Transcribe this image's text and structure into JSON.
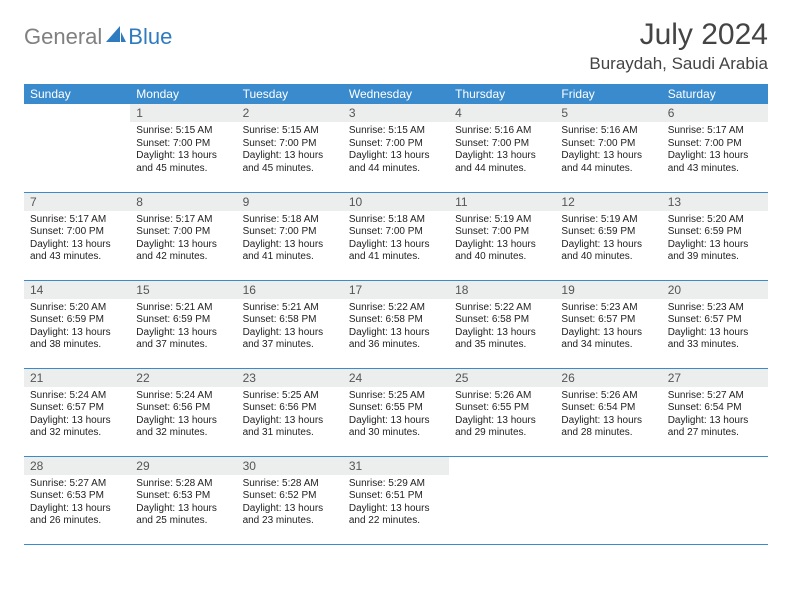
{
  "logo": {
    "gray": "General",
    "blue": "Blue"
  },
  "title": "July 2024",
  "location": "Buraydah, Saudi Arabia",
  "weekdays": [
    "Sunday",
    "Monday",
    "Tuesday",
    "Wednesday",
    "Thursday",
    "Friday",
    "Saturday"
  ],
  "colors": {
    "header_bg": "#3a8bce",
    "header_text": "#ffffff",
    "daynum_bg": "#eceded",
    "logo_gray": "#808080",
    "logo_blue": "#2f7bbf",
    "cell_border": "#3a8bce"
  },
  "typography": {
    "title_fontsize": 30,
    "location_fontsize": 17,
    "weekday_fontsize": 12,
    "daynum_fontsize": 12,
    "body_fontsize": 10
  },
  "layout": {
    "cols": 7,
    "rows": 5,
    "first_day_col": 1
  },
  "days": [
    {
      "n": 1,
      "sunrise": "5:15 AM",
      "sunset": "7:00 PM",
      "daylight": "13 hours and 45 minutes."
    },
    {
      "n": 2,
      "sunrise": "5:15 AM",
      "sunset": "7:00 PM",
      "daylight": "13 hours and 45 minutes."
    },
    {
      "n": 3,
      "sunrise": "5:15 AM",
      "sunset": "7:00 PM",
      "daylight": "13 hours and 44 minutes."
    },
    {
      "n": 4,
      "sunrise": "5:16 AM",
      "sunset": "7:00 PM",
      "daylight": "13 hours and 44 minutes."
    },
    {
      "n": 5,
      "sunrise": "5:16 AM",
      "sunset": "7:00 PM",
      "daylight": "13 hours and 44 minutes."
    },
    {
      "n": 6,
      "sunrise": "5:17 AM",
      "sunset": "7:00 PM",
      "daylight": "13 hours and 43 minutes."
    },
    {
      "n": 7,
      "sunrise": "5:17 AM",
      "sunset": "7:00 PM",
      "daylight": "13 hours and 43 minutes."
    },
    {
      "n": 8,
      "sunrise": "5:17 AM",
      "sunset": "7:00 PM",
      "daylight": "13 hours and 42 minutes."
    },
    {
      "n": 9,
      "sunrise": "5:18 AM",
      "sunset": "7:00 PM",
      "daylight": "13 hours and 41 minutes."
    },
    {
      "n": 10,
      "sunrise": "5:18 AM",
      "sunset": "7:00 PM",
      "daylight": "13 hours and 41 minutes."
    },
    {
      "n": 11,
      "sunrise": "5:19 AM",
      "sunset": "7:00 PM",
      "daylight": "13 hours and 40 minutes."
    },
    {
      "n": 12,
      "sunrise": "5:19 AM",
      "sunset": "6:59 PM",
      "daylight": "13 hours and 40 minutes."
    },
    {
      "n": 13,
      "sunrise": "5:20 AM",
      "sunset": "6:59 PM",
      "daylight": "13 hours and 39 minutes."
    },
    {
      "n": 14,
      "sunrise": "5:20 AM",
      "sunset": "6:59 PM",
      "daylight": "13 hours and 38 minutes."
    },
    {
      "n": 15,
      "sunrise": "5:21 AM",
      "sunset": "6:59 PM",
      "daylight": "13 hours and 37 minutes."
    },
    {
      "n": 16,
      "sunrise": "5:21 AM",
      "sunset": "6:58 PM",
      "daylight": "13 hours and 37 minutes."
    },
    {
      "n": 17,
      "sunrise": "5:22 AM",
      "sunset": "6:58 PM",
      "daylight": "13 hours and 36 minutes."
    },
    {
      "n": 18,
      "sunrise": "5:22 AM",
      "sunset": "6:58 PM",
      "daylight": "13 hours and 35 minutes."
    },
    {
      "n": 19,
      "sunrise": "5:23 AM",
      "sunset": "6:57 PM",
      "daylight": "13 hours and 34 minutes."
    },
    {
      "n": 20,
      "sunrise": "5:23 AM",
      "sunset": "6:57 PM",
      "daylight": "13 hours and 33 minutes."
    },
    {
      "n": 21,
      "sunrise": "5:24 AM",
      "sunset": "6:57 PM",
      "daylight": "13 hours and 32 minutes."
    },
    {
      "n": 22,
      "sunrise": "5:24 AM",
      "sunset": "6:56 PM",
      "daylight": "13 hours and 32 minutes."
    },
    {
      "n": 23,
      "sunrise": "5:25 AM",
      "sunset": "6:56 PM",
      "daylight": "13 hours and 31 minutes."
    },
    {
      "n": 24,
      "sunrise": "5:25 AM",
      "sunset": "6:55 PM",
      "daylight": "13 hours and 30 minutes."
    },
    {
      "n": 25,
      "sunrise": "5:26 AM",
      "sunset": "6:55 PM",
      "daylight": "13 hours and 29 minutes."
    },
    {
      "n": 26,
      "sunrise": "5:26 AM",
      "sunset": "6:54 PM",
      "daylight": "13 hours and 28 minutes."
    },
    {
      "n": 27,
      "sunrise": "5:27 AM",
      "sunset": "6:54 PM",
      "daylight": "13 hours and 27 minutes."
    },
    {
      "n": 28,
      "sunrise": "5:27 AM",
      "sunset": "6:53 PM",
      "daylight": "13 hours and 26 minutes."
    },
    {
      "n": 29,
      "sunrise": "5:28 AM",
      "sunset": "6:53 PM",
      "daylight": "13 hours and 25 minutes."
    },
    {
      "n": 30,
      "sunrise": "5:28 AM",
      "sunset": "6:52 PM",
      "daylight": "13 hours and 23 minutes."
    },
    {
      "n": 31,
      "sunrise": "5:29 AM",
      "sunset": "6:51 PM",
      "daylight": "13 hours and 22 minutes."
    }
  ],
  "labels": {
    "sunrise": "Sunrise: ",
    "sunset": "Sunset: ",
    "daylight": "Daylight: "
  }
}
